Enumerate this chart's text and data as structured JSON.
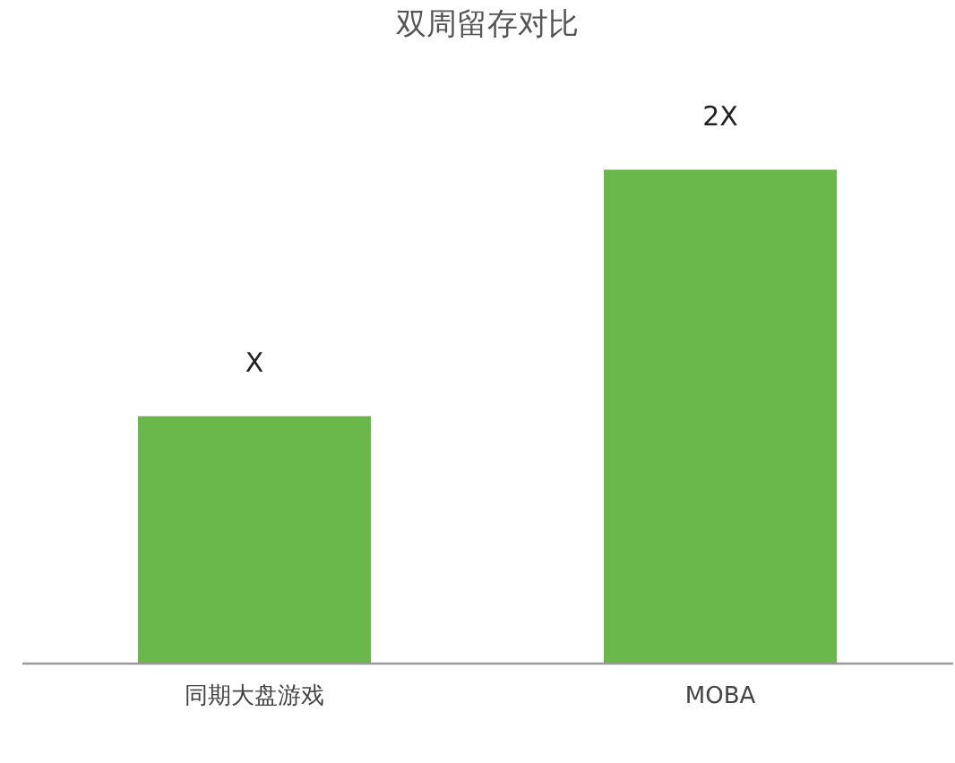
{
  "chart_data": {
    "type": "bar",
    "title": "双周留存对比",
    "categories": [
      "同期大盘游戏",
      "MOBA"
    ],
    "values": [
      1,
      2
    ],
    "value_labels": [
      "X",
      "2X"
    ],
    "color": "#6ab74c",
    "tick_labels": "x"
  }
}
